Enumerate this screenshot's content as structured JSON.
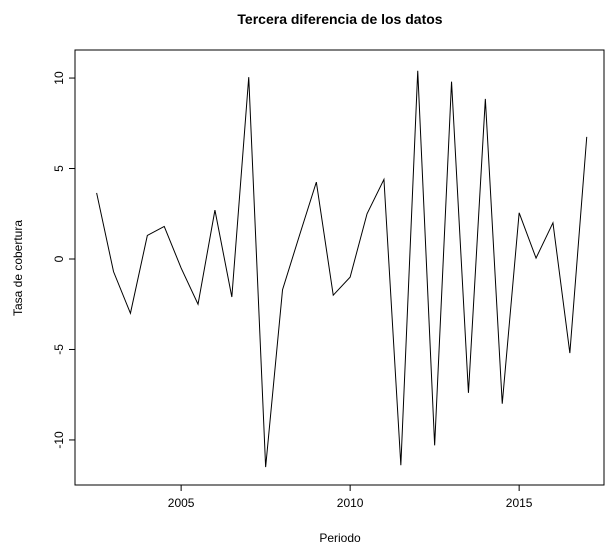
{
  "chart_data": {
    "type": "line",
    "title": "Tercera diferencia de los datos",
    "x_label": "Periodo",
    "y_label": "Tasa de cobertura",
    "x": [
      2002.5,
      2003,
      2003.5,
      2004,
      2004.5,
      2005,
      2005.5,
      2006,
      2006.5,
      2007,
      2007.5,
      2008,
      2008.5,
      2009,
      2009.5,
      2010,
      2010.5,
      2011,
      2011.5,
      2012,
      2012.5,
      2013,
      2013.5,
      2014,
      2014.5,
      2015,
      2015.5,
      2016,
      2016.5,
      2017
    ],
    "series": [
      {
        "name": "Tercera diferencia",
        "color": "#000000",
        "values": [
          3.65,
          -0.7,
          -3.0,
          1.3,
          1.8,
          -0.5,
          -2.5,
          2.7,
          -2.1,
          10.05,
          -11.5,
          -1.7,
          1.3,
          4.25,
          -2.0,
          -1.0,
          2.5,
          4.4,
          -11.4,
          10.4,
          -10.3,
          9.8,
          -7.4,
          8.85,
          -8.0,
          2.55,
          0.05,
          2.0,
          -5.2,
          6.75
        ]
      }
    ],
    "xlim": [
      2001.86,
      2017.54
    ],
    "ylim": [
      -12.49,
      11.55
    ],
    "xticks": [
      2005,
      2010,
      2015
    ],
    "yticks": [
      -10,
      -5,
      0,
      5,
      10
    ]
  }
}
